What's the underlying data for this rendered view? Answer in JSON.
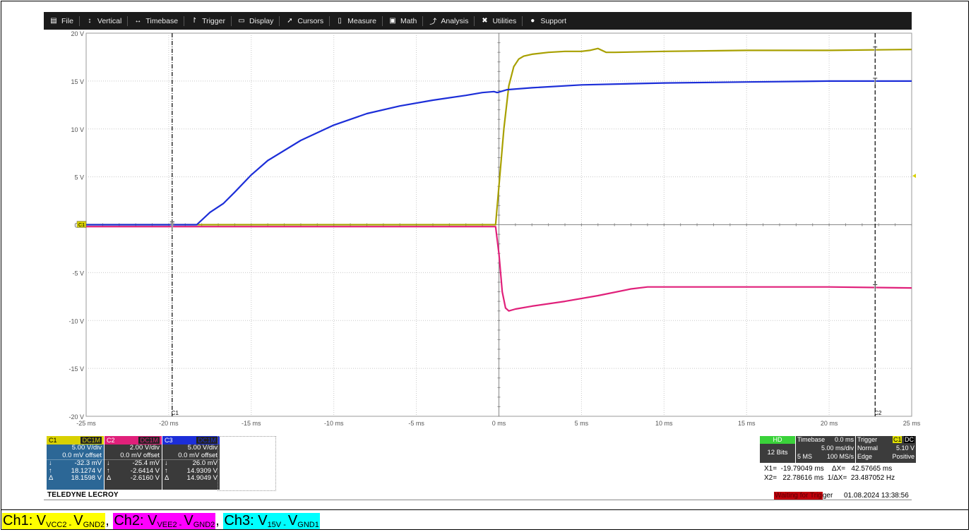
{
  "menu": [
    {
      "label": "File",
      "icon": "file-icon",
      "glyph": "▤"
    },
    {
      "label": "Vertical",
      "icon": "vertical-arrows-icon",
      "glyph": "↕"
    },
    {
      "label": "Timebase",
      "icon": "horizontal-arrows-icon",
      "glyph": "↔"
    },
    {
      "label": "Trigger",
      "icon": "trigger-icon",
      "glyph": "↾"
    },
    {
      "label": "Display",
      "icon": "display-icon",
      "glyph": "▭"
    },
    {
      "label": "Cursors",
      "icon": "cursor-icon",
      "glyph": "➚"
    },
    {
      "label": "Measure",
      "icon": "measure-icon",
      "glyph": "▯"
    },
    {
      "label": "Math",
      "icon": "math-icon",
      "glyph": "▣"
    },
    {
      "label": "Analysis",
      "icon": "analysis-icon",
      "glyph": "⤴"
    },
    {
      "label": "Utilities",
      "icon": "utilities-icon",
      "glyph": "✖"
    },
    {
      "label": "Support",
      "icon": "info-icon",
      "glyph": "●"
    }
  ],
  "grid": {
    "y_labels": [
      "20 V",
      "15 V",
      "10 V",
      "5 V",
      "0 V",
      "-5 V",
      "-10 V",
      "-15 V",
      "-20 V"
    ],
    "x_labels": [
      "-25 ms",
      "-20 ms",
      "-15 ms",
      "-10 ms",
      "-5 ms",
      "0 ms",
      "5 ms",
      "10 ms",
      "15 ms",
      "20 ms",
      "25 ms"
    ]
  },
  "chart_data": {
    "type": "line",
    "x_unit": "ms",
    "y_unit": "V",
    "xlim": [
      -25,
      25
    ],
    "ylim": [
      -20,
      20
    ],
    "grid": true,
    "series": [
      {
        "name": "C1",
        "color": "#a8a000",
        "x": [
          -25,
          -0.2,
          0,
          0.3,
          0.6,
          0.9,
          1.2,
          1.5,
          2,
          3,
          4,
          5,
          5.5,
          6,
          6.5,
          7,
          10,
          15,
          20,
          25
        ],
        "y": [
          0,
          0,
          4,
          10,
          14.5,
          16.5,
          17.3,
          17.6,
          17.8,
          18.0,
          18.1,
          18.1,
          18.2,
          18.4,
          18.0,
          18.0,
          18.1,
          18.2,
          18.2,
          18.3
        ]
      },
      {
        "name": "C2",
        "color": "#e0207a",
        "x": [
          -25,
          -0.2,
          0,
          0.2,
          0.4,
          0.6,
          1,
          2,
          4,
          6,
          8,
          9,
          10,
          15,
          20,
          25
        ],
        "y": [
          -0.2,
          -0.2,
          -3,
          -7,
          -8.7,
          -9.0,
          -8.8,
          -8.5,
          -8.0,
          -7.4,
          -6.7,
          -6.5,
          -6.5,
          -6.5,
          -6.5,
          -6.6
        ]
      },
      {
        "name": "C3",
        "color": "#1c2ed8",
        "x": [
          -25,
          -18.3,
          -17.5,
          -16.7,
          -16,
          -15,
          -14,
          -12,
          -10,
          -8,
          -6,
          -4,
          -2,
          -1,
          -0.3,
          -0.1,
          0.5,
          2,
          5,
          10,
          15,
          20,
          25
        ],
        "y": [
          0,
          0,
          1.3,
          2.2,
          3.4,
          5.2,
          6.7,
          8.8,
          10.4,
          11.6,
          12.4,
          13.0,
          13.5,
          13.8,
          13.9,
          13.8,
          14.1,
          14.3,
          14.6,
          14.8,
          14.9,
          15.0,
          15.0
        ]
      }
    ],
    "cursors": [
      {
        "label": "C1",
        "x": -19.79049
      },
      {
        "label": "C2",
        "x": 22.78616
      }
    ]
  },
  "channels": [
    {
      "name": "C1",
      "coupling": "DC1M",
      "color": "#2a6496",
      "vdiv": "5.00 V/div",
      "offset": "0.0 mV offset",
      "r1s": "↓",
      "r1": "-32.3 mV",
      "r2s": "↑",
      "r2": "18.1274 V",
      "r3s": "Δ",
      "r3": "18.1598 V"
    },
    {
      "name": "C2",
      "coupling": "DC1M",
      "color": "#3a3a3a",
      "vdiv": "2.00 V/div",
      "offset": "0.0 mV offset",
      "r1s": "↓",
      "r1": "-25.4 mV",
      "r2s": "↑",
      "r2": "-2.6414 V",
      "r3s": "Δ",
      "r3": "-2.6160 V"
    },
    {
      "name": "C3",
      "coupling": "DC1M",
      "color": "#3a3a3a",
      "vdiv": "5.00 V/div",
      "offset": "0.0 mV offset",
      "r1s": "↓",
      "r1": "26.0 mV",
      "r2s": "↑",
      "r2": "14.9309 V",
      "r3s": "Δ",
      "r3": "14.9049 V"
    }
  ],
  "acq": {
    "hd": "HD",
    "bits": "12 Bits",
    "timebase_label": "Timebase",
    "timebase_delay": "0.0 ms",
    "timebase_div": "5.00 ms/div",
    "samples": "5 MS",
    "rate": "100 MS/s",
    "trigger_label": "Trigger",
    "trig_ch": "C1",
    "trig_coupling": "DC",
    "trig_mode": "Normal",
    "trig_level": "5.10 V",
    "trig_type": "Edge",
    "trig_slope": "Positive"
  },
  "cursor_readout": {
    "line1": "X1=  -19.79049 ms    ΔX=   42.57665 ms",
    "line2": "X2=   22.78616 ms  1/ΔX=  23.487052 Hz"
  },
  "status": {
    "brand": "TELEDYNE LECROY",
    "waiting_left": "Waiting for Trig",
    "waiting_right": "ger",
    "datetime": "01.08.2024 13:38:56"
  },
  "caption": [
    {
      "prefix": "Ch1: V",
      "sub1": "VCC2 - ",
      "mid": "V",
      "sub2": "GND2",
      "bg": "#ffff00",
      "after": ", "
    },
    {
      "prefix": "Ch2: V",
      "sub1": "VEE2 - ",
      "mid": "V",
      "sub2": "GND2",
      "bg": "#ff00ff",
      "after": ", "
    },
    {
      "prefix": "Ch3: V",
      "sub1": "15V - ",
      "mid": "V",
      "sub2": "GND1",
      "bg": "#00ffff",
      "after": ""
    }
  ]
}
